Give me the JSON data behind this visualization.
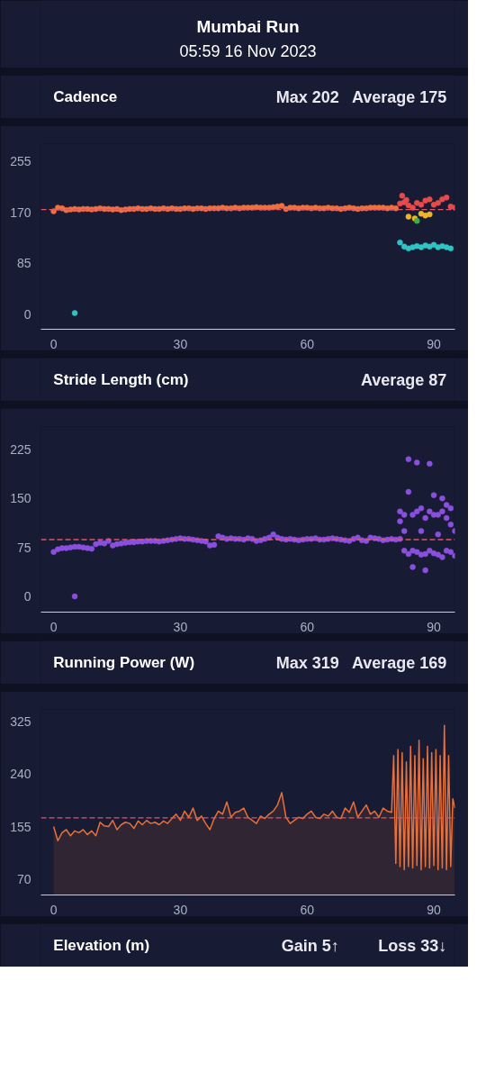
{
  "chart_data": [
    {
      "type": "other",
      "title": "Mumbai Run",
      "subtitle": "05:59 16 Nov 2023"
    },
    {
      "type": "scatter",
      "title": "Cadence",
      "annotations": [
        "Max 202",
        "Average 175"
      ],
      "marker": "circle",
      "xlim": [
        -3,
        95
      ],
      "xticks": [
        0,
        30,
        60,
        90
      ],
      "ylim": [
        -25,
        285
      ],
      "yticks": [
        0,
        85,
        170,
        255
      ],
      "ref_lines": [
        {
          "axis": "y",
          "value": 175,
          "color": "#e0556a",
          "line_style": "dashed"
        }
      ],
      "series": [
        {
          "color": "#f0703c",
          "x": [
            0,
            1,
            2,
            3,
            4,
            5,
            6,
            7,
            8,
            9,
            10,
            11,
            12,
            13,
            14,
            15,
            16,
            17,
            18,
            19,
            20,
            21,
            22,
            23,
            24,
            25,
            26,
            27,
            28,
            29,
            30,
            31,
            32,
            33,
            34,
            35,
            36,
            37,
            38,
            39,
            40,
            41,
            42,
            43,
            44,
            45,
            46,
            47,
            48,
            49,
            50,
            51,
            52,
            53,
            54,
            55,
            56,
            57,
            58,
            59,
            60,
            61,
            62,
            63,
            64,
            65,
            66,
            67,
            68,
            69,
            70,
            71,
            72,
            73,
            74,
            75,
            76,
            77,
            78,
            79,
            80,
            81
          ],
          "values": [
            172,
            178,
            177,
            174,
            175,
            176,
            175,
            176,
            176,
            175,
            176,
            177,
            176,
            176,
            175,
            176,
            174,
            175,
            176,
            176,
            177,
            176,
            176,
            177,
            176,
            176,
            177,
            176,
            177,
            176,
            176,
            177,
            177,
            176,
            177,
            177,
            176,
            177,
            177,
            177,
            178,
            177,
            177,
            178,
            177,
            178,
            178,
            178,
            179,
            178,
            178,
            178,
            179,
            180,
            181,
            176,
            178,
            178,
            177,
            178,
            178,
            177,
            178,
            177,
            177,
            178,
            177,
            177,
            176,
            177,
            178,
            177,
            176,
            177,
            177,
            178,
            178,
            178,
            178,
            177,
            178,
            177
          ]
        },
        {
          "color": "#e84a4a",
          "x": [
            82,
            82.5,
            83,
            83.5,
            84,
            85,
            86,
            87,
            88,
            89,
            90,
            91,
            92,
            93,
            94,
            95
          ],
          "values": [
            185,
            198,
            187,
            191,
            182,
            178,
            186,
            183,
            190,
            192,
            183,
            186,
            192,
            195,
            180,
            178
          ]
        },
        {
          "color": "#f0b429",
          "x": [
            84,
            85.5,
            87,
            88,
            89
          ],
          "values": [
            163,
            160,
            168,
            165,
            167
          ]
        },
        {
          "color": "#3cb043",
          "x": [
            86
          ],
          "values": [
            156
          ]
        },
        {
          "color": "#2ec4c4",
          "x": [
            5,
            82,
            83,
            84,
            85,
            86,
            87,
            88,
            89,
            90,
            91,
            92,
            93,
            94
          ],
          "values": [
            2,
            120,
            113,
            110,
            112,
            114,
            112,
            115,
            113,
            116,
            112,
            114,
            112,
            110
          ]
        }
      ]
    },
    {
      "type": "scatter",
      "title": "Stride Length (cm)",
      "annotations": [
        "Average 87"
      ],
      "marker": "circle",
      "xlim": [
        -3,
        95
      ],
      "xticks": [
        0,
        30,
        60,
        90
      ],
      "ylim": [
        -24,
        260
      ],
      "yticks": [
        0,
        75,
        150,
        225
      ],
      "ref_lines": [
        {
          "axis": "y",
          "value": 87,
          "color": "#e0556a",
          "line_style": "dashed"
        }
      ],
      "series": [
        {
          "color": "#8b4fe0",
          "x": [
            0,
            1,
            2,
            3,
            4,
            5,
            6,
            7,
            8,
            9,
            10,
            11,
            12,
            13,
            14,
            15,
            16,
            17,
            18,
            19,
            20,
            21,
            22,
            23,
            24,
            25,
            26,
            27,
            28,
            29,
            30,
            31,
            32,
            33,
            34,
            35,
            36,
            37,
            38,
            39,
            40,
            41,
            42,
            43,
            44,
            45,
            46,
            47,
            48,
            49,
            50,
            51,
            52,
            53,
            54,
            55,
            56,
            57,
            58,
            59,
            60,
            61,
            62,
            63,
            64,
            65,
            66,
            67,
            68,
            69,
            70,
            71,
            72,
            73,
            74,
            75,
            76,
            77,
            78,
            79,
            80,
            81
          ],
          "values": [
            68,
            72,
            74,
            74,
            75,
            76,
            76,
            75,
            74,
            73,
            80,
            82,
            81,
            85,
            78,
            80,
            81,
            82,
            83,
            83,
            84,
            84,
            85,
            85,
            85,
            84,
            85,
            86,
            87,
            88,
            89,
            88,
            88,
            87,
            86,
            85,
            84,
            78,
            79,
            92,
            90,
            88,
            89,
            88,
            88,
            87,
            89,
            88,
            85,
            86,
            88,
            90,
            95,
            90,
            88,
            87,
            88,
            87,
            86,
            87,
            88,
            88,
            89,
            87,
            87,
            88,
            89,
            88,
            87,
            86,
            85,
            88,
            90,
            86,
            85,
            90,
            89,
            88,
            86,
            87,
            88,
            87
          ]
        },
        {
          "color": "#8b4fe0",
          "x": [
            5,
            82,
            82,
            82,
            83,
            83,
            83,
            84,
            84,
            84,
            85,
            85,
            85,
            86,
            86,
            86,
            87,
            87,
            87,
            88,
            88,
            88,
            89,
            89,
            89,
            90,
            90,
            90,
            91,
            91,
            91,
            92,
            92,
            92,
            93,
            93,
            93,
            94,
            94,
            94,
            95,
            95
          ],
          "values": [
            0,
            130,
            115,
            88,
            125,
            70,
            100,
            210,
            160,
            65,
            125,
            70,
            45,
            205,
            130,
            68,
            135,
            100,
            64,
            120,
            65,
            40,
            203,
            130,
            70,
            155,
            125,
            66,
            125,
            64,
            95,
            150,
            130,
            60,
            140,
            70,
            120,
            135,
            68,
            110,
            100,
            62
          ]
        }
      ]
    },
    {
      "type": "area",
      "title": "Running Power (W)",
      "annotations": [
        "Max 319",
        "Average 169"
      ],
      "xlim": [
        -3,
        95
      ],
      "xticks": [
        0,
        30,
        60,
        90
      ],
      "ylim": [
        44,
        345
      ],
      "yticks": [
        70,
        155,
        240,
        325
      ],
      "ref_lines": [
        {
          "axis": "y",
          "value": 169,
          "color": "#e0556a",
          "line_style": "dashed"
        }
      ],
      "series": [
        {
          "color": "#e8703a",
          "x": [
            0,
            1,
            2,
            3,
            4,
            5,
            6,
            7,
            8,
            9,
            10,
            11,
            12,
            13,
            14,
            15,
            16,
            17,
            18,
            19,
            20,
            21,
            22,
            23,
            24,
            25,
            26,
            27,
            28,
            29,
            30,
            31,
            32,
            33,
            34,
            35,
            36,
            37,
            38,
            39,
            40,
            41,
            42,
            43,
            44,
            45,
            46,
            47,
            48,
            49,
            50,
            51,
            52,
            53,
            54,
            55,
            56,
            57,
            58,
            59,
            60,
            61,
            62,
            63,
            64,
            65,
            66,
            67,
            68,
            69,
            70,
            71,
            72,
            73,
            74,
            75,
            76,
            77,
            78,
            79,
            80,
            80.5,
            81,
            81.5,
            82,
            82.5,
            83,
            83.5,
            84,
            84.5,
            85,
            85.5,
            86,
            86.5,
            87,
            87.5,
            88,
            88.5,
            89,
            89.5,
            90,
            90.5,
            91,
            91.5,
            92,
            92.5,
            93,
            93.5,
            94,
            94.5,
            95
          ],
          "values": [
            155,
            132,
            145,
            150,
            140,
            148,
            145,
            150,
            142,
            148,
            140,
            162,
            156,
            155,
            165,
            150,
            158,
            162,
            160,
            152,
            164,
            158,
            165,
            160,
            162,
            158,
            164,
            160,
            168,
            175,
            165,
            180,
            170,
            185,
            165,
            172,
            160,
            150,
            168,
            180,
            175,
            195,
            170,
            178,
            180,
            185,
            170,
            165,
            160,
            172,
            168,
            175,
            180,
            190,
            210,
            170,
            160,
            165,
            170,
            168,
            175,
            180,
            170,
            168,
            175,
            172,
            180,
            170,
            168,
            185,
            178,
            195,
            170,
            180,
            190,
            175,
            180,
            170,
            185,
            180,
            178,
            270,
            95,
            280,
            90,
            275,
            85,
            260,
            90,
            285,
            88,
            270,
            92,
            295,
            85,
            265,
            90,
            285,
            88,
            275,
            92,
            280,
            85,
            270,
            88,
            319,
            85,
            270,
            90,
            200,
            185
          ]
        }
      ]
    },
    {
      "type": "other",
      "title": "Elevation (m)",
      "annotations": [
        "Gain 5↑",
        "Loss 33↓"
      ]
    }
  ]
}
